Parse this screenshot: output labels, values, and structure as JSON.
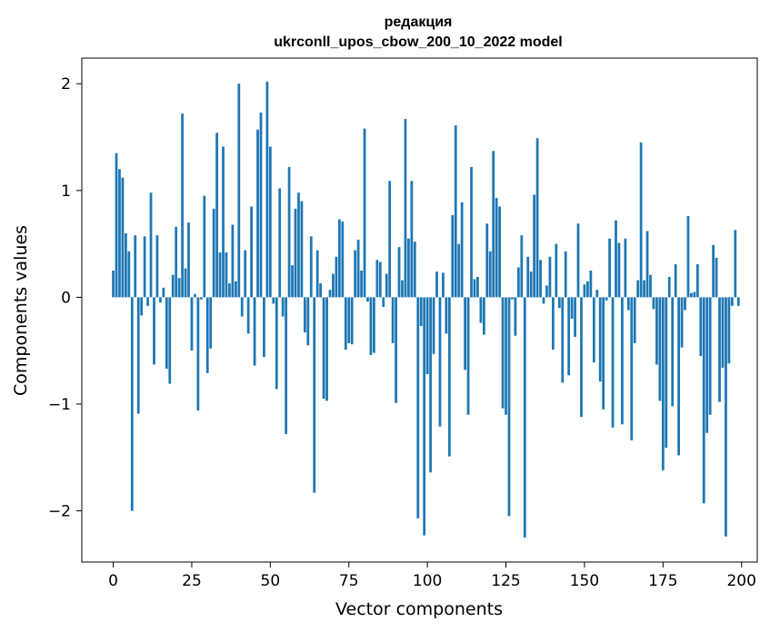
{
  "chart_data": {
    "type": "bar",
    "title_line1": "редакция",
    "title_line2": "ukrconll_upos_cbow_200_10_2022 model",
    "xlabel": "Vector components",
    "ylabel": "Components values",
    "xlim": [
      -10,
      205
    ],
    "ylim": [
      -2.48,
      2.24
    ],
    "xticks": [
      0,
      25,
      50,
      75,
      100,
      125,
      150,
      175,
      200
    ],
    "xtick_labels": [
      "0",
      "25",
      "50",
      "75",
      "100",
      "125",
      "150",
      "175",
      "200"
    ],
    "yticks": [
      -2,
      -1,
      0,
      1,
      2
    ],
    "ytick_labels": [
      "−2",
      "−1",
      "0",
      "1",
      "2"
    ],
    "bar_color": "#1f77b4",
    "grid": false,
    "values": [
      0.25,
      1.35,
      1.2,
      1.12,
      0.6,
      0.43,
      -2.0,
      0.58,
      -1.09,
      -0.17,
      0.57,
      -0.08,
      0.98,
      -0.63,
      0.58,
      -0.05,
      0.09,
      -0.67,
      -0.81,
      0.21,
      0.66,
      0.18,
      1.72,
      0.27,
      0.7,
      -0.5,
      0.03,
      -1.06,
      -0.02,
      0.95,
      -0.71,
      -0.48,
      0.83,
      1.54,
      0.42,
      1.41,
      0.42,
      0.13,
      0.68,
      0.15,
      2.0,
      -0.18,
      0.44,
      -0.34,
      0.85,
      -0.64,
      1.57,
      1.73,
      -0.56,
      2.02,
      1.41,
      -0.06,
      -0.86,
      1.02,
      -0.18,
      -1.28,
      1.22,
      0.3,
      0.83,
      0.98,
      0.9,
      -0.33,
      -0.45,
      0.57,
      -1.83,
      0.44,
      0.13,
      -0.95,
      -0.97,
      0.07,
      0.22,
      0.38,
      0.73,
      0.71,
      -0.49,
      -0.43,
      -0.44,
      0.44,
      0.54,
      0.25,
      1.58,
      -0.04,
      -0.54,
      -0.52,
      0.35,
      0.33,
      -0.09,
      0.22,
      1.09,
      -0.43,
      -0.99,
      0.47,
      0.16,
      1.67,
      0.55,
      1.09,
      0.52,
      -2.07,
      -0.27,
      -2.23,
      -0.72,
      -1.64,
      -0.53,
      0.24,
      -1.21,
      0.23,
      -0.34,
      -1.49,
      0.77,
      1.61,
      0.5,
      0.89,
      -0.68,
      -1.1,
      1.22,
      0.17,
      0.19,
      -0.24,
      -0.35,
      0.69,
      0.43,
      1.37,
      0.93,
      0.85,
      -1.04,
      -1.1,
      -2.05,
      -0.02,
      -0.36,
      0.28,
      0.58,
      -2.25,
      0.38,
      0.24,
      0.96,
      1.49,
      0.35,
      -0.06,
      0.11,
      0.38,
      -0.49,
      0.5,
      -0.1,
      -0.8,
      0.43,
      -0.73,
      -0.2,
      -0.37,
      0.69,
      -1.12,
      0.12,
      0.15,
      0.25,
      -0.61,
      0.07,
      -0.79,
      -1.05,
      -0.03,
      0.55,
      -1.22,
      0.72,
      0.51,
      -1.19,
      0.55,
      -0.12,
      -1.34,
      -0.43,
      0.16,
      1.45,
      0.16,
      0.62,
      0.21,
      -0.11,
      -0.63,
      -0.97,
      -1.62,
      -1.41,
      0.19,
      -1.02,
      0.31,
      -1.48,
      -0.47,
      -0.12,
      0.76,
      0.04,
      0.05,
      0.31,
      -0.55,
      -1.93,
      -1.27,
      -1.1,
      0.49,
      0.37,
      -0.98,
      -0.66,
      -2.24,
      -0.62,
      -0.08,
      0.63,
      -0.08
    ]
  }
}
